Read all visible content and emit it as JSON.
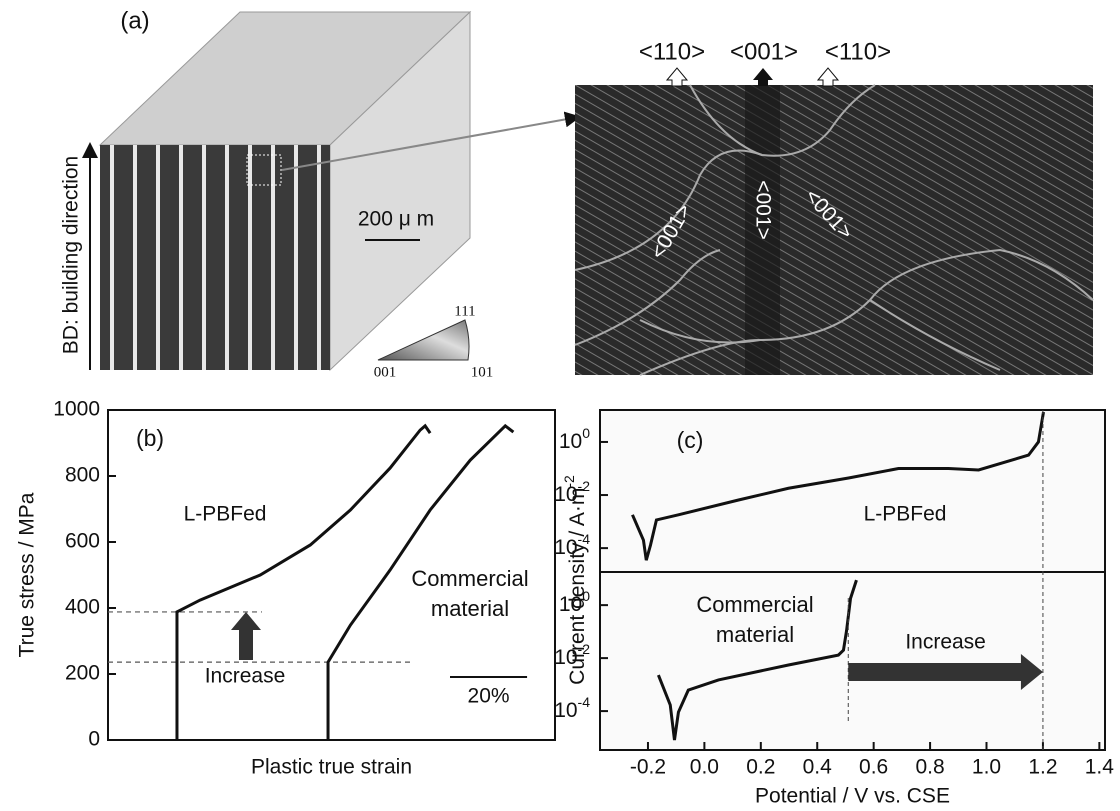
{
  "figure_a": {
    "label": "(a)",
    "axis_label": "BD: building direction",
    "scale_bar": "200 μ m",
    "ipf_corners": [
      "111",
      "001",
      "101"
    ],
    "directions": [
      "<110>",
      "<001>",
      "<110>"
    ],
    "grain_labels": [
      "<001>",
      "<001>",
      "<001>"
    ]
  },
  "chart_data": [
    {
      "type": "line",
      "panel_label": "(b)",
      "xlabel": "Plastic true strain",
      "ylabel": "True stress / MPa",
      "xlim": [
        0,
        116
      ],
      "ylim": [
        0,
        1000
      ],
      "yticks": [
        0,
        200,
        400,
        600,
        800,
        1000
      ],
      "scale_bar": {
        "value": 20,
        "label": "20%"
      },
      "annotation": "Increase",
      "reference_lines": [
        388,
        236
      ],
      "series": [
        {
          "name": "L-PBFed",
          "color": "#111111",
          "x": [
            17.9,
            17.9,
            23.9,
            39.5,
            52.5,
            62.9,
            73.2,
            81,
            82.3,
            83.6
          ],
          "values": [
            0,
            388,
            424,
            500,
            591,
            697,
            824,
            939,
            952,
            930
          ]
        },
        {
          "name": "Commercial material",
          "color": "#111111",
          "x": [
            57.1,
            57.1,
            62.9,
            73.2,
            83.6,
            94,
            103.1,
            105.2
          ],
          "values": [
            0,
            236,
            348,
            515,
            697,
            848,
            952,
            933
          ]
        }
      ]
    },
    {
      "type": "line",
      "panel_label": "(c)",
      "xlabel": "Potential / V vs. CSE",
      "ylabel": {
        "text": "Current density / A·m",
        "sup": "-2"
      },
      "xlim": [
        -0.37,
        1.42
      ],
      "xticks": [
        -0.2,
        {
          "value": 0,
          "label": "0.0"
        },
        0.2,
        0.4,
        0.6,
        0.8,
        {
          "value": 1,
          "label": "1.0"
        },
        1.2,
        1.4
      ],
      "log_y": true,
      "annotation": "Increase",
      "reference_lines": [
        1.2,
        0.51
      ],
      "panels": [
        {
          "ylim": [
            1.26e-05,
            16
          ],
          "yticks": [
            {
              "value": 1,
              "base": "10",
              "sup": "0"
            },
            {
              "value": 0.01,
              "base": "10",
              "sup": "-2"
            },
            {
              "value": 0.0001,
              "base": "10",
              "sup": "-4"
            }
          ],
          "series": [
            {
              "name": "L-PBFed",
              "color": "#111111",
              "x": [
                -0.255,
                -0.216,
                -0.206,
                -0.191,
                -0.17,
                -0.092,
                0.121,
                0.298,
                0.511,
                0.688,
                0.865,
                0.972,
                1.149,
                1.184,
                1.202
              ],
              "values": [
                0.0018,
                0.0002,
                3.5e-05,
                0.00013,
                0.00115,
                0.0018,
                0.0065,
                0.018,
                0.044,
                0.1,
                0.1,
                0.088,
                0.32,
                1,
                13.5
              ]
            }
          ]
        },
        {
          "ylim": [
            3.4e-06,
            17.8
          ],
          "yticks": [
            {
              "value": 1,
              "base": "10",
              "sup": "0"
            },
            {
              "value": 0.01,
              "base": "10",
              "sup": "-2"
            },
            {
              "value": 0.0001,
              "base": "10",
              "sup": "-4"
            }
          ],
          "series": [
            {
              "name": "Commercial material",
              "color": "#111111",
              "x": [
                -0.163,
                -0.121,
                -0.106,
                -0.092,
                -0.057,
                0.05,
                0.298,
                0.475,
                0.493,
                0.504,
                0.518,
                0.539
              ],
              "values": [
                0.0023,
                0.00017,
                8.1e-06,
                9.1e-05,
                0.00062,
                0.0015,
                0.0055,
                0.013,
                0.02,
                0.11,
                1.8,
                8.8
              ]
            }
          ]
        }
      ]
    }
  ]
}
